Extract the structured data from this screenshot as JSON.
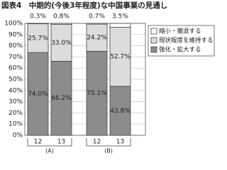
{
  "chart_data": {
    "type": "stacked-bar",
    "title": "図表4　中期的(今後3年程度)な中国事業の見通し",
    "categories": [
      "12",
      "13",
      "12",
      "13"
    ],
    "groups": [
      "(A)",
      "(B)"
    ],
    "series": [
      {
        "name": "縮小・撤退する",
        "color": "#ffffff",
        "values": [
          0.3,
          0.8,
          0.7,
          3.5
        ],
        "value_labels": [
          "0.3%",
          "0.8%",
          "0.7%",
          "3.5%"
        ]
      },
      {
        "name": "現状程度を維持する",
        "color": "#dcdcdc",
        "values": [
          25.7,
          33.0,
          24.2,
          52.7
        ],
        "value_labels": [
          "25.7%",
          "33.0%",
          "24.2%",
          "52.7%"
        ]
      },
      {
        "name": "強化・拡大する",
        "color": "#8c8c8c",
        "values": [
          74.0,
          66.2,
          75.1,
          43.8
        ],
        "value_labels": [
          "74.0%",
          "66.2%",
          "75.1%",
          "43.8%"
        ]
      }
    ],
    "ylim": [
      0,
      100
    ],
    "yticks": [
      {
        "value": 0,
        "label": "0%"
      },
      {
        "value": 10,
        "label": "10%"
      },
      {
        "value": 20,
        "label": "20%"
      },
      {
        "value": 30,
        "label": "30%"
      },
      {
        "value": 40,
        "label": "40%"
      },
      {
        "value": 50,
        "label": "50%"
      },
      {
        "value": 60,
        "label": "60%"
      },
      {
        "value": 70,
        "label": "70%"
      },
      {
        "value": 80,
        "label": "80%"
      },
      {
        "value": 90,
        "label": "90%"
      },
      {
        "value": 100,
        "label": "100%"
      }
    ],
    "grid": true
  }
}
